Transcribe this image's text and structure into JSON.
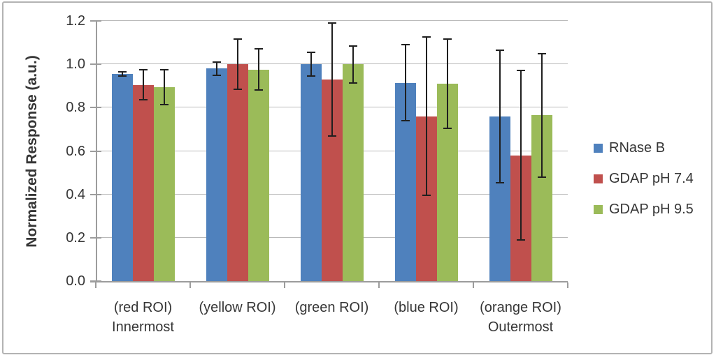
{
  "chart_data": {
    "type": "bar",
    "title": "",
    "ylabel": "Normalized Response (a.u.)",
    "xlabel": "",
    "ylim": [
      0.0,
      1.2
    ],
    "ytick_labels": [
      "0.0",
      "0.2",
      "0.4",
      "0.6",
      "0.8",
      "1.0",
      "1.2"
    ],
    "grid": true,
    "legend_position": "right",
    "error_bars": true,
    "categories": [
      "(red ROI) Innermost",
      "(yellow ROI)",
      "(green ROI)",
      "(blue ROI)",
      "(orange ROI) Outermost"
    ],
    "category_lines": [
      [
        "(red ROI)",
        "Innermost"
      ],
      [
        "(yellow ROI)"
      ],
      [
        "(green ROI)"
      ],
      [
        "(blue ROI)"
      ],
      [
        "(orange ROI)",
        "Outermost"
      ]
    ],
    "series": [
      {
        "name": "RNase B",
        "color": "#4f81bd",
        "values": [
          0.955,
          0.98,
          1.0,
          0.915,
          0.76
        ],
        "errors": [
          0.01,
          0.03,
          0.055,
          0.175,
          0.305
        ]
      },
      {
        "name": "GDAP pH 7.4",
        "color": "#c0504d",
        "values": [
          0.905,
          1.0,
          0.93,
          0.76,
          0.58
        ],
        "errors": [
          0.07,
          0.115,
          0.26,
          0.365,
          0.39
        ]
      },
      {
        "name": "GDAP pH 9.5",
        "color": "#9bbb59",
        "values": [
          0.895,
          0.975,
          1.0,
          0.91,
          0.765
        ],
        "errors": [
          0.08,
          0.095,
          0.085,
          0.205,
          0.285
        ]
      }
    ],
    "colors": {
      "axis": "#9c9c9c",
      "gridline": "#b9b9b9",
      "error_bar": "#1f1f1f",
      "text": "#363636",
      "frame_border": "#b3b3b3",
      "background": "#ffffff"
    }
  }
}
